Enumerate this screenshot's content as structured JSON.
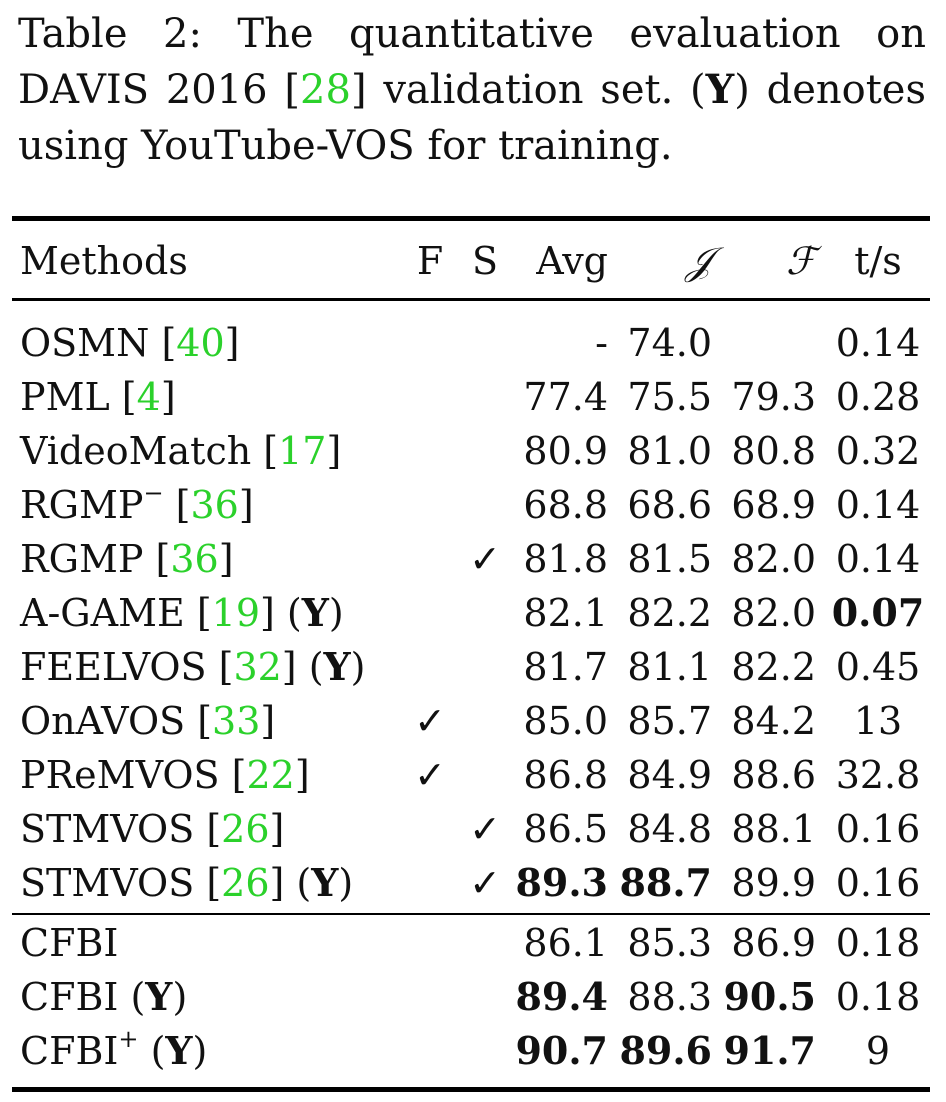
{
  "caption": {
    "prefix": "Table 2: The quantitative evaluation on DAVIS 2016",
    "cite": "28",
    "mid": "validation set. (",
    "bold_y": "Y",
    "suffix": ") denotes using YouTube-VOS for training."
  },
  "headers": {
    "methods": "Methods",
    "f": "F",
    "s": "S",
    "avg": "Avg",
    "j": "𝒥",
    "f2": "ℱ",
    "t": "t/s"
  },
  "rows": [
    {
      "name": "OSMN",
      "cite": "40",
      "sup": "",
      "y": "",
      "f": "",
      "s": "",
      "avg": "-",
      "j": "74.0",
      "f2": "",
      "t": "0.14"
    },
    {
      "name": "PML",
      "cite": "4",
      "sup": "",
      "y": "",
      "f": "",
      "s": "",
      "avg": "77.4",
      "j": "75.5",
      "f2": "79.3",
      "t": "0.28"
    },
    {
      "name": "VideoMatch",
      "cite": "17",
      "sup": "",
      "y": "",
      "f": "",
      "s": "",
      "avg": "80.9",
      "j": "81.0",
      "f2": "80.8",
      "t": "0.32"
    },
    {
      "name": "RGMP",
      "cite": "36",
      "sup": "−",
      "y": "",
      "f": "",
      "s": "",
      "avg": "68.8",
      "j": "68.6",
      "f2": "68.9",
      "t": "0.14"
    },
    {
      "name": "RGMP",
      "cite": "36",
      "sup": "",
      "y": "",
      "f": "",
      "s": "✓",
      "avg": "81.8",
      "j": "81.5",
      "f2": "82.0",
      "t": "0.14"
    },
    {
      "name": "A-GAME",
      "cite": "19",
      "sup": "",
      "y": "Y",
      "f": "",
      "s": "",
      "avg": "82.1",
      "j": "82.2",
      "f2": "82.0",
      "t": "0.07"
    },
    {
      "name": "FEELVOS",
      "cite": "32",
      "sup": "",
      "y": "Y",
      "f": "",
      "s": "",
      "avg": "81.7",
      "j": "81.1",
      "f2": "82.2",
      "t": "0.45"
    },
    {
      "name": "OnAVOS",
      "cite": "33",
      "sup": "",
      "y": "",
      "f": "✓",
      "s": "",
      "avg": "85.0",
      "j": "85.7",
      "f2": "84.2",
      "t": "13"
    },
    {
      "name": "PReMVOS",
      "cite": "22",
      "sup": "",
      "y": "",
      "f": "✓",
      "s": "",
      "avg": "86.8",
      "j": "84.9",
      "f2": "88.6",
      "t": "32.8"
    },
    {
      "name": "STMVOS",
      "cite": "26",
      "sup": "",
      "y": "",
      "f": "",
      "s": "✓",
      "avg": "86.5",
      "j": "84.8",
      "f2": "88.1",
      "t": "0.16"
    },
    {
      "name": "STMVOS",
      "cite": "26",
      "sup": "",
      "y": "Y",
      "f": "",
      "s": "✓",
      "avg": "89.3",
      "j": "88.7",
      "f2": "89.9",
      "t": "0.16"
    },
    {
      "name": "CFBI",
      "cite": "",
      "sup": "",
      "y": "",
      "f": "",
      "s": "",
      "avg": "86.1",
      "j": "85.3",
      "f2": "86.9",
      "t": "0.18"
    },
    {
      "name": "CFBI",
      "cite": "",
      "sup": "",
      "y": "Y",
      "f": "",
      "s": "",
      "avg": "89.4",
      "j": "88.3",
      "f2": "90.5",
      "t": "0.18"
    },
    {
      "name": "CFBI",
      "cite": "",
      "sup": "+",
      "y": "Y",
      "f": "",
      "s": "",
      "avg": "90.7",
      "j": "89.6",
      "f2": "91.7",
      "t": "9"
    }
  ]
}
